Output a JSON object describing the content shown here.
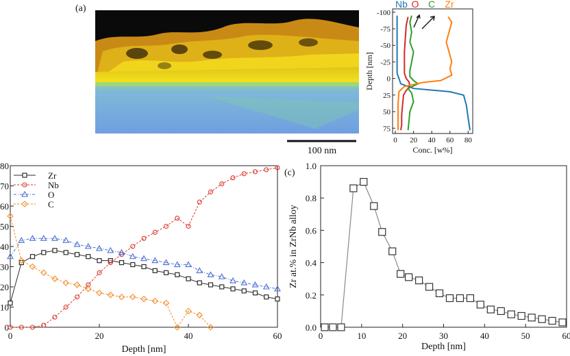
{
  "panel_a": {
    "label": "(a)",
    "scale_bar_label": "100 nm"
  },
  "colors": {
    "zr_top": "#2b2b2b",
    "nb_red": "#d9362b",
    "o_blue": "#4a6fd1",
    "c_orange": "#f28c28",
    "map_yellow": "#f2e21a",
    "map_blue": "#6f9fe0",
    "profile_nb": "#1f77b4",
    "profile_o": "#d62728",
    "profile_c": "#2ca02c",
    "profile_zr": "#ff7f0e"
  },
  "chart_data": [
    {
      "id": "eds-profile",
      "type": "line",
      "xlabel": "Conc. [w%]",
      "ylabel": "Depth [nm]",
      "xlim": [
        -3,
        85
      ],
      "ylim": [
        -105,
        83
      ],
      "y_inverted": true,
      "xticks": [
        0,
        20,
        40,
        60,
        80
      ],
      "yticks": [
        -100,
        -75,
        -50,
        -25,
        0,
        25,
        50,
        75
      ],
      "legend_placement": "top",
      "series": [
        {
          "name": "Nb",
          "color": "#1f77b4",
          "points": [
            [
              2,
              -95
            ],
            [
              2,
              -80
            ],
            [
              2,
              -60
            ],
            [
              2,
              -40
            ],
            [
              2,
              -20
            ],
            [
              2,
              -8
            ],
            [
              4,
              0
            ],
            [
              6,
              8
            ],
            [
              20,
              15
            ],
            [
              60,
              20
            ],
            [
              75,
              25
            ],
            [
              78,
              40
            ],
            [
              80,
              60
            ],
            [
              82,
              78
            ]
          ]
        },
        {
          "name": "O",
          "color": "#d62728",
          "points": [
            [
              14,
              -93
            ],
            [
              12,
              -80
            ],
            [
              11,
              -60
            ],
            [
              10,
              -40
            ],
            [
              10,
              -20
            ],
            [
              10,
              -8
            ],
            [
              12,
              0
            ],
            [
              15,
              5
            ],
            [
              16,
              12
            ],
            [
              12,
              18
            ],
            [
              9,
              25
            ],
            [
              8,
              40
            ],
            [
              7,
              55
            ],
            [
              7,
              70
            ],
            [
              6,
              78
            ]
          ]
        },
        {
          "name": "C",
          "color": "#2ca02c",
          "points": [
            [
              18,
              -95
            ],
            [
              16,
              -85
            ],
            [
              18,
              -70
            ],
            [
              16,
              -55
            ],
            [
              20,
              -40
            ],
            [
              18,
              -25
            ],
            [
              16,
              -12
            ],
            [
              16,
              -3
            ],
            [
              20,
              3
            ],
            [
              25,
              8
            ],
            [
              14,
              15
            ],
            [
              18,
              22
            ],
            [
              20,
              35
            ],
            [
              16,
              50
            ],
            [
              15,
              65
            ],
            [
              14,
              78
            ]
          ]
        },
        {
          "name": "Zr",
          "color": "#ff7f0e",
          "points": [
            [
              58,
              -93
            ],
            [
              62,
              -85
            ],
            [
              60,
              -75
            ],
            [
              58,
              -65
            ],
            [
              56,
              -55
            ],
            [
              58,
              -45
            ],
            [
              60,
              -35
            ],
            [
              62,
              -25
            ],
            [
              60,
              -15
            ],
            [
              62,
              -5
            ],
            [
              50,
              3
            ],
            [
              30,
              6
            ],
            [
              10,
              12
            ],
            [
              4,
              20
            ],
            [
              3,
              40
            ],
            [
              3,
              60
            ],
            [
              3,
              78
            ]
          ]
        }
      ]
    },
    {
      "id": "concentration-depth",
      "type": "line",
      "xlabel": "Depth [nm]",
      "ylabel": "",
      "xlim": [
        0,
        60
      ],
      "ylim": [
        0,
        80
      ],
      "xticks": [
        0,
        20,
        40,
        60
      ],
      "yticks": [
        0,
        10,
        20,
        30,
        40,
        50,
        60,
        70,
        80
      ],
      "legend_placement": "top-left",
      "series": [
        {
          "name": "Zr",
          "marker": "square",
          "color": "#2b2b2b",
          "x": [
            0,
            2.5,
            5,
            7.5,
            10,
            12.5,
            15,
            17.5,
            20,
            22.5,
            25,
            27.5,
            30,
            32.5,
            35,
            37.5,
            40,
            42.5,
            45,
            47.5,
            50,
            52.5,
            55,
            57.5,
            60
          ],
          "y": [
            12,
            32,
            35,
            37,
            38,
            37,
            36,
            35,
            33,
            33,
            32,
            31,
            30,
            28,
            27,
            26,
            24,
            22,
            21,
            20,
            19,
            18,
            17,
            15,
            14
          ]
        },
        {
          "name": "Nb",
          "marker": "circle",
          "color": "#d9362b",
          "x": [
            0,
            2.5,
            5,
            7.5,
            10,
            12.5,
            15,
            17.5,
            20,
            22.5,
            25,
            27.5,
            30,
            32.5,
            35,
            37.5,
            40,
            42.5,
            45,
            47.5,
            50,
            52.5,
            55,
            57.5,
            60
          ],
          "y": [
            0,
            0,
            0,
            1,
            5,
            10,
            15,
            21,
            27,
            32,
            36,
            40,
            44,
            47,
            50,
            54,
            50,
            62,
            67,
            71,
            74,
            76,
            77,
            78,
            79
          ]
        },
        {
          "name": "O",
          "marker": "triangle",
          "color": "#4a6fd1",
          "x": [
            0,
            2.5,
            5,
            7.5,
            10,
            12.5,
            15,
            17.5,
            20,
            22.5,
            25,
            27.5,
            30,
            32.5,
            35,
            37.5,
            40,
            42.5,
            45,
            47.5,
            50,
            52.5,
            55,
            57.5,
            60
          ],
          "y": [
            35,
            43,
            44,
            44,
            44,
            43,
            41,
            40,
            39,
            38,
            37,
            35,
            34,
            33,
            32,
            31,
            31,
            28,
            26,
            25,
            23,
            22,
            21,
            20,
            19
          ]
        },
        {
          "name": "C",
          "marker": "diamond",
          "color": "#f28c28",
          "x": [
            0,
            2.5,
            5,
            7.5,
            10,
            12.5,
            15,
            17.5,
            20,
            22.5,
            25,
            27.5,
            30,
            32.5,
            35,
            37.5,
            40,
            42.5,
            45
          ],
          "y": [
            55,
            33,
            30,
            27,
            24,
            22,
            21,
            19,
            17,
            16,
            15,
            15,
            14,
            13,
            12,
            0,
            8,
            6,
            0
          ]
        }
      ]
    },
    {
      "id": "zr-in-znb",
      "panel_label": "(c)",
      "type": "line",
      "xlabel": "Depth [nm]",
      "ylabel": "Zr at.% in ZrNb alloy",
      "xlim": [
        0,
        60
      ],
      "ylim": [
        0,
        1.0
      ],
      "xticks": [
        0,
        10,
        20,
        30,
        40,
        50,
        60
      ],
      "yticks": [
        0.0,
        0.2,
        0.4,
        0.6,
        0.8,
        1.0
      ],
      "series": [
        {
          "marker": "square",
          "color": "#333333",
          "x": [
            1,
            3,
            5,
            8,
            10.5,
            13,
            15,
            17.5,
            19.5,
            21.5,
            24,
            26.5,
            29,
            31.5,
            34,
            36.5,
            39,
            41.5,
            44,
            46.5,
            49,
            51.5,
            54,
            56.5,
            59
          ],
          "y": [
            0,
            0,
            0,
            0.86,
            0.9,
            0.75,
            0.59,
            0.47,
            0.33,
            0.31,
            0.29,
            0.25,
            0.21,
            0.18,
            0.18,
            0.18,
            0.14,
            0.11,
            0.1,
            0.08,
            0.07,
            0.06,
            0.05,
            0.04,
            0.03
          ]
        }
      ]
    }
  ]
}
